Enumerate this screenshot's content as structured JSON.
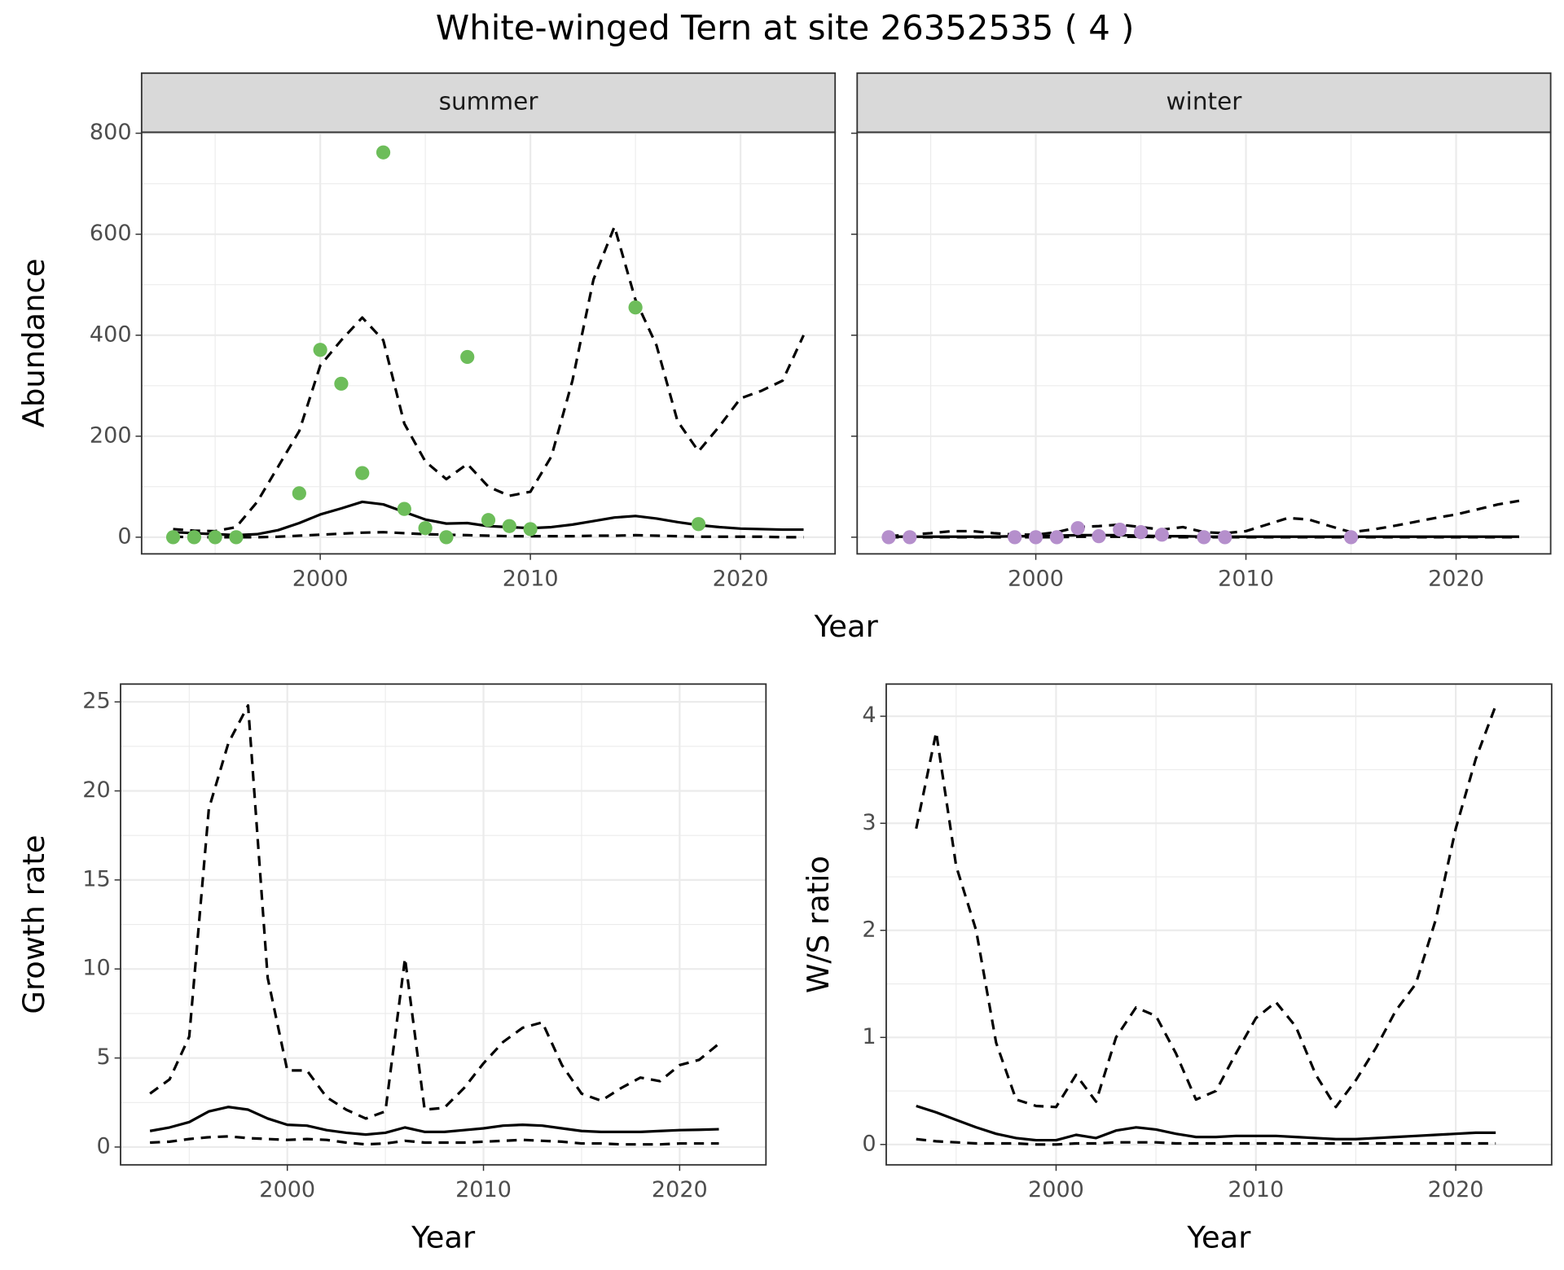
{
  "title": "White-winged Tern at site 26352535 ( 4 )",
  "chart_data": [
    {
      "type": "line",
      "facet": "summer",
      "ylabel": "Abundance",
      "xlabel": "Year",
      "xlim": [
        1991.5,
        2024.5
      ],
      "ylim": [
        -33,
        802
      ],
      "xticks": [
        2000,
        2010,
        2020
      ],
      "yticks": [
        0,
        200,
        400,
        600,
        800
      ],
      "minor_xticks": [
        1995,
        2005,
        2015
      ],
      "minor_yticks": [
        100,
        300,
        500,
        700
      ],
      "grid": true,
      "show_ytick_labels": true,
      "x": [
        1993,
        1994,
        1995,
        1996,
        1997,
        1998,
        1999,
        2000,
        2001,
        2002,
        2003,
        2004,
        2005,
        2006,
        2007,
        2008,
        2009,
        2010,
        2011,
        2012,
        2013,
        2014,
        2015,
        2016,
        2017,
        2018,
        2019,
        2020,
        2021,
        2022,
        2023
      ],
      "series": [
        {
          "mark": "line",
          "dash": false,
          "color": "#000000",
          "values": [
            10,
            8,
            6,
            4,
            6,
            14,
            28,
            45,
            57,
            70,
            65,
            50,
            35,
            27,
            28,
            22,
            20,
            18,
            20,
            25,
            32,
            39,
            42,
            37,
            30,
            24,
            20,
            17,
            16,
            15,
            15
          ]
        },
        {
          "mark": "line",
          "dash": true,
          "color": "#000000",
          "values": [
            16,
            13,
            12,
            20,
            70,
            140,
            210,
            340,
            390,
            435,
            390,
            225,
            150,
            115,
            145,
            100,
            82,
            90,
            160,
            310,
            510,
            615,
            470,
            380,
            230,
            170,
            220,
            275,
            290,
            310,
            400
          ]
        },
        {
          "mark": "line",
          "dash": true,
          "color": "#000000",
          "values": [
            1,
            0,
            0,
            0,
            0,
            1,
            3,
            5,
            7,
            9,
            10,
            8,
            6,
            5,
            4,
            3,
            2,
            2,
            2,
            2,
            3,
            3,
            4,
            3,
            2,
            1,
            1,
            1,
            1,
            0,
            0
          ]
        },
        {
          "mark": "point",
          "color": "#6dbd5a",
          "x": [
            1993,
            1994,
            1995,
            1996,
            1999,
            2000,
            2001,
            2002,
            2003,
            2004,
            2005,
            2006,
            2007,
            2008,
            2009,
            2010,
            2015,
            2018
          ],
          "values": [
            0,
            0,
            0,
            0,
            87,
            371,
            304,
            127,
            762,
            56,
            18,
            0,
            357,
            34,
            22,
            16,
            455,
            26
          ]
        }
      ]
    },
    {
      "type": "line",
      "facet": "winter",
      "xlim": [
        1991.5,
        2024.5
      ],
      "ylim": [
        -33,
        802
      ],
      "xticks": [
        2000,
        2010,
        2020
      ],
      "yticks": [
        0,
        200,
        400,
        600,
        800
      ],
      "minor_xticks": [
        1995,
        2005,
        2015
      ],
      "minor_yticks": [
        100,
        300,
        500,
        700
      ],
      "grid": true,
      "show_ytick_labels": false,
      "x": [
        1993,
        1994,
        1995,
        1996,
        1997,
        1998,
        1999,
        2000,
        2001,
        2002,
        2003,
        2004,
        2005,
        2006,
        2007,
        2008,
        2009,
        2010,
        2011,
        2012,
        2013,
        2014,
        2015,
        2016,
        2017,
        2018,
        2019,
        2020,
        2021,
        2022,
        2023
      ],
      "series": [
        {
          "mark": "line",
          "dash": false,
          "color": "#000000",
          "values": [
            1,
            1,
            1,
            1,
            1,
            1,
            2,
            2,
            3,
            4,
            4,
            4,
            3,
            2,
            2,
            1,
            1,
            1,
            1,
            1,
            1,
            1,
            1,
            1,
            1,
            1,
            1,
            1,
            1,
            1,
            1
          ]
        },
        {
          "mark": "line",
          "dash": true,
          "color": "#000000",
          "values": [
            2,
            5,
            8,
            12,
            12,
            8,
            5,
            5,
            10,
            20,
            22,
            25,
            20,
            15,
            20,
            10,
            8,
            12,
            25,
            38,
            35,
            22,
            10,
            15,
            22,
            30,
            38,
            45,
            55,
            65,
            72
          ]
        },
        {
          "mark": "line",
          "dash": true,
          "color": "#000000",
          "values": [
            0,
            0,
            0,
            0,
            0,
            0,
            0,
            0,
            0,
            1,
            1,
            1,
            1,
            0,
            0,
            0,
            0,
            0,
            0,
            0,
            0,
            0,
            0,
            0,
            0,
            0,
            0,
            0,
            0,
            0,
            0
          ]
        },
        {
          "mark": "point",
          "color": "#b58fcc",
          "x": [
            1993,
            1994,
            1999,
            2000,
            2001,
            2002,
            2003,
            2004,
            2005,
            2006,
            2008,
            2009,
            2015
          ],
          "values": [
            0,
            0,
            0,
            0,
            0,
            18,
            2,
            15,
            10,
            5,
            0,
            0,
            0
          ]
        }
      ]
    },
    {
      "type": "line",
      "ylabel": "Growth rate",
      "xlabel": "Year",
      "xlim": [
        1991.5,
        2024.4
      ],
      "ylim": [
        -1,
        26
      ],
      "xticks": [
        2000,
        2010,
        2020
      ],
      "yticks": [
        0,
        5,
        10,
        15,
        20,
        25
      ],
      "minor_xticks": [
        1995,
        2005,
        2015
      ],
      "minor_yticks": [
        2.5,
        7.5,
        12.5,
        17.5,
        22.5
      ],
      "grid": true,
      "show_ytick_labels": true,
      "x": [
        1993,
        1994,
        1995,
        1996,
        1997,
        1998,
        1999,
        2000,
        2001,
        2002,
        2003,
        2004,
        2005,
        2006,
        2007,
        2008,
        2009,
        2010,
        2011,
        2012,
        2013,
        2014,
        2015,
        2016,
        2017,
        2018,
        2019,
        2020,
        2021,
        2022
      ],
      "series": [
        {
          "mark": "line",
          "dash": false,
          "color": "#000000",
          "values": [
            0.9,
            1.1,
            1.4,
            2.0,
            2.25,
            2.1,
            1.6,
            1.25,
            1.2,
            0.95,
            0.8,
            0.7,
            0.8,
            1.1,
            0.85,
            0.85,
            0.95,
            1.05,
            1.2,
            1.25,
            1.2,
            1.05,
            0.9,
            0.85,
            0.85,
            0.85,
            0.9,
            0.95,
            0.97,
            1.0
          ]
        },
        {
          "mark": "line",
          "dash": true,
          "color": "#000000",
          "values": [
            3.0,
            3.8,
            6.2,
            19,
            22.7,
            24.8,
            9.5,
            4.3,
            4.3,
            2.8,
            2.1,
            1.6,
            2.0,
            10.6,
            2.1,
            2.2,
            3.3,
            4.7,
            5.9,
            6.7,
            7.0,
            4.6,
            3.0,
            2.6,
            3.3,
            3.9,
            3.7,
            4.6,
            4.9,
            5.8
          ]
        },
        {
          "mark": "line",
          "dash": true,
          "color": "#000000",
          "values": [
            0.25,
            0.3,
            0.45,
            0.55,
            0.6,
            0.5,
            0.45,
            0.4,
            0.45,
            0.4,
            0.25,
            0.15,
            0.2,
            0.35,
            0.25,
            0.25,
            0.25,
            0.3,
            0.35,
            0.4,
            0.35,
            0.3,
            0.2,
            0.2,
            0.15,
            0.15,
            0.15,
            0.2,
            0.2,
            0.2
          ]
        }
      ]
    },
    {
      "type": "line",
      "ylabel": "W/S ratio",
      "xlabel": "Year",
      "xlim": [
        1991.5,
        2024.8
      ],
      "ylim": [
        -0.19,
        4.3
      ],
      "xticks": [
        2000,
        2010,
        2020
      ],
      "yticks": [
        0,
        1,
        2,
        3,
        4
      ],
      "minor_xticks": [
        1995,
        2005,
        2015
      ],
      "minor_yticks": [
        0.5,
        1.5,
        2.5,
        3.5
      ],
      "grid": true,
      "show_ytick_labels": true,
      "x": [
        1993,
        1994,
        1995,
        1996,
        1997,
        1998,
        1999,
        2000,
        2001,
        2002,
        2003,
        2004,
        2005,
        2006,
        2007,
        2008,
        2009,
        2010,
        2011,
        2012,
        2013,
        2014,
        2015,
        2016,
        2017,
        2018,
        2019,
        2020,
        2021,
        2022
      ],
      "series": [
        {
          "mark": "line",
          "dash": false,
          "color": "#000000",
          "values": [
            0.36,
            0.3,
            0.23,
            0.16,
            0.1,
            0.06,
            0.04,
            0.04,
            0.09,
            0.06,
            0.13,
            0.16,
            0.14,
            0.1,
            0.07,
            0.07,
            0.08,
            0.08,
            0.08,
            0.07,
            0.06,
            0.05,
            0.05,
            0.06,
            0.07,
            0.08,
            0.09,
            0.1,
            0.11,
            0.11
          ]
        },
        {
          "mark": "line",
          "dash": true,
          "color": "#000000",
          "values": [
            2.95,
            3.85,
            2.6,
            2.0,
            0.95,
            0.42,
            0.36,
            0.35,
            0.65,
            0.4,
            1.0,
            1.28,
            1.2,
            0.85,
            0.42,
            0.5,
            0.85,
            1.18,
            1.33,
            1.1,
            0.65,
            0.35,
            0.6,
            0.9,
            1.25,
            1.5,
            2.1,
            2.95,
            3.6,
            4.1
          ]
        },
        {
          "mark": "line",
          "dash": true,
          "color": "#000000",
          "values": [
            0.05,
            0.03,
            0.02,
            0.01,
            0.01,
            0.01,
            0,
            0,
            0.01,
            0.01,
            0.02,
            0.02,
            0.02,
            0.01,
            0.01,
            0.01,
            0.01,
            0.01,
            0.01,
            0.01,
            0.01,
            0.01,
            0.01,
            0.01,
            0.01,
            0.01,
            0.01,
            0.01,
            0.01,
            0.01
          ]
        }
      ]
    }
  ]
}
